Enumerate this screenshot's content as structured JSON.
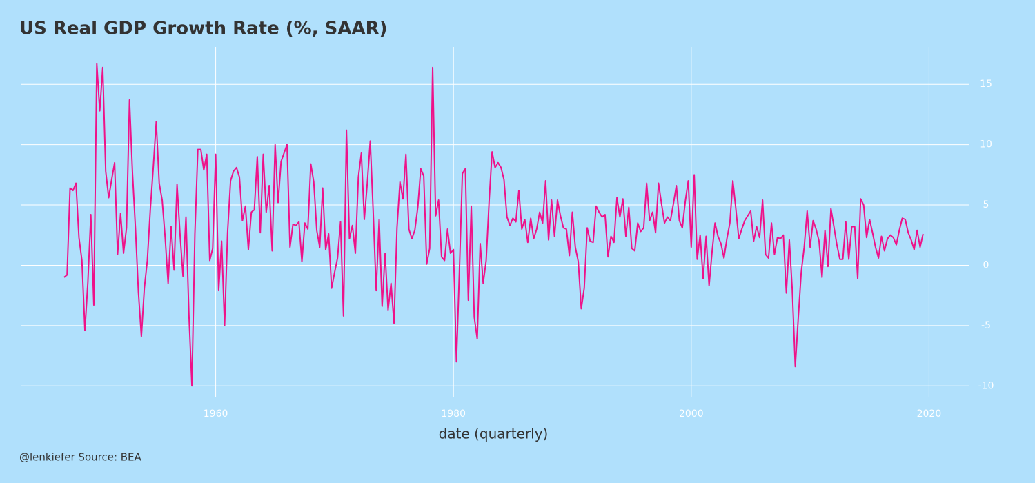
{
  "chart_data": {
    "type": "line",
    "title": "US Real GDP Growth Rate (%, SAAR)",
    "x_label": "date (quarterly)",
    "caption": "@lenkiefer Source: BEA",
    "x": [
      1947.25,
      1947.5,
      1947.75,
      1948,
      1948.25,
      1948.5,
      1948.75,
      1949,
      1949.25,
      1949.5,
      1949.75,
      1950,
      1950.25,
      1950.5,
      1950.75,
      1951,
      1951.25,
      1951.5,
      1951.75,
      1952,
      1952.25,
      1952.5,
      1952.75,
      1953,
      1953.25,
      1953.5,
      1953.75,
      1954,
      1954.25,
      1954.5,
      1954.75,
      1955,
      1955.25,
      1955.5,
      1955.75,
      1956,
      1956.25,
      1956.5,
      1956.75,
      1957,
      1957.25,
      1957.5,
      1957.75,
      1958,
      1958.25,
      1958.5,
      1958.75,
      1959,
      1959.25,
      1959.5,
      1959.75,
      1960,
      1960.25,
      1960.5,
      1960.75,
      1961,
      1961.25,
      1961.5,
      1961.75,
      1962,
      1962.25,
      1962.5,
      1962.75,
      1963,
      1963.25,
      1963.5,
      1963.75,
      1964,
      1964.25,
      1964.5,
      1964.75,
      1965,
      1965.25,
      1965.5,
      1965.75,
      1966,
      1966.25,
      1966.5,
      1966.75,
      1967,
      1967.25,
      1967.5,
      1967.75,
      1968,
      1968.25,
      1968.5,
      1968.75,
      1969,
      1969.25,
      1969.5,
      1969.75,
      1970,
      1970.25,
      1970.5,
      1970.75,
      1971,
      1971.25,
      1971.5,
      1971.75,
      1972,
      1972.25,
      1972.5,
      1972.75,
      1973,
      1973.25,
      1973.5,
      1973.75,
      1974,
      1974.25,
      1974.5,
      1974.75,
      1975,
      1975.25,
      1975.5,
      1975.75,
      1976,
      1976.25,
      1976.5,
      1976.75,
      1977,
      1977.25,
      1977.5,
      1977.75,
      1978,
      1978.25,
      1978.5,
      1978.75,
      1979,
      1979.25,
      1979.5,
      1979.75,
      1980,
      1980.25,
      1980.5,
      1980.75,
      1981,
      1981.25,
      1981.5,
      1981.75,
      1982,
      1982.25,
      1982.5,
      1982.75,
      1983,
      1983.25,
      1983.5,
      1983.75,
      1984,
      1984.25,
      1984.5,
      1984.75,
      1985,
      1985.25,
      1985.5,
      1985.75,
      1986,
      1986.25,
      1986.5,
      1986.75,
      1987,
      1987.25,
      1987.5,
      1987.75,
      1988,
      1988.25,
      1988.5,
      1988.75,
      1989,
      1989.25,
      1989.5,
      1989.75,
      1990,
      1990.25,
      1990.5,
      1990.75,
      1991,
      1991.25,
      1991.5,
      1991.75,
      1992,
      1992.25,
      1992.5,
      1992.75,
      1993,
      1993.25,
      1993.5,
      1993.75,
      1994,
      1994.25,
      1994.5,
      1994.75,
      1995,
      1995.25,
      1995.5,
      1995.75,
      1996,
      1996.25,
      1996.5,
      1996.75,
      1997,
      1997.25,
      1997.5,
      1997.75,
      1998,
      1998.25,
      1998.5,
      1998.75,
      1999,
      1999.25,
      1999.5,
      1999.75,
      2000,
      2000.25,
      2000.5,
      2000.75,
      2001,
      2001.25,
      2001.5,
      2001.75,
      2002,
      2002.25,
      2002.5,
      2002.75,
      2003,
      2003.25,
      2003.5,
      2003.75,
      2004,
      2004.25,
      2004.5,
      2004.75,
      2005,
      2005.25,
      2005.5,
      2005.75,
      2006,
      2006.25,
      2006.5,
      2006.75,
      2007,
      2007.25,
      2007.5,
      2007.75,
      2008,
      2008.25,
      2008.5,
      2008.75,
      2009,
      2009.25,
      2009.5,
      2009.75,
      2010,
      2010.25,
      2010.5,
      2010.75,
      2011,
      2011.25,
      2011.5,
      2011.75,
      2012,
      2012.25,
      2012.5,
      2012.75,
      2013,
      2013.25,
      2013.5,
      2013.75,
      2014,
      2014.25,
      2014.5,
      2014.75,
      2015,
      2015.25,
      2015.5,
      2015.75,
      2016,
      2016.25,
      2016.5,
      2016.75,
      2017,
      2017.25,
      2017.5,
      2017.75,
      2018,
      2018.25,
      2018.5,
      2018.75,
      2019,
      2019.25,
      2019.5
    ],
    "series": [
      {
        "color": "#ee1289",
        "values": [
          -1.0,
          -0.8,
          6.4,
          6.2,
          6.8,
          2.3,
          0.4,
          -5.4,
          -1.4,
          4.2,
          -3.3,
          16.7,
          12.8,
          16.4,
          7.8,
          5.6,
          7.1,
          8.5,
          0.9,
          4.3,
          1.0,
          3.1,
          13.7,
          7.7,
          3.1,
          -2.2,
          -5.9,
          -1.9,
          0.4,
          4.6,
          8.1,
          11.9,
          6.8,
          5.4,
          2.3,
          -1.5,
          3.2,
          -0.4,
          6.7,
          2.6,
          -0.9,
          4.0,
          -4.1,
          -10.0,
          2.6,
          9.6,
          9.6,
          7.9,
          9.2,
          0.4,
          1.4,
          9.2,
          -2.1,
          2.0,
          -5.0,
          2.7,
          7.0,
          7.8,
          8.1,
          7.3,
          3.7,
          4.9,
          1.3,
          4.4,
          4.6,
          9.0,
          2.7,
          9.2,
          4.4,
          6.6,
          1.2,
          10.0,
          5.2,
          8.6,
          9.3,
          10.0,
          1.5,
          3.4,
          3.3,
          3.6,
          0.3,
          3.5,
          3.0,
          8.4,
          6.9,
          2.9,
          1.5,
          6.4,
          1.3,
          2.6,
          -1.9,
          -0.6,
          0.6,
          3.6,
          -4.2,
          11.2,
          2.2,
          3.3,
          1.0,
          7.3,
          9.3,
          3.8,
          6.8,
          10.3,
          4.4,
          -2.1,
          3.8,
          -3.4,
          1.0,
          -3.7,
          -1.5,
          -4.8,
          3.1,
          6.9,
          5.5,
          9.2,
          3.0,
          2.2,
          2.9,
          4.8,
          8.0,
          7.4,
          0.1,
          1.4,
          16.4,
          4.1,
          5.4,
          0.7,
          0.4,
          3.0,
          1.0,
          1.3,
          -8.0,
          -0.5,
          7.6,
          8.0,
          -2.9,
          4.9,
          -4.3,
          -6.1,
          1.8,
          -1.5,
          0.4,
          5.3,
          9.4,
          8.1,
          8.5,
          8.1,
          7.1,
          4.0,
          3.3,
          3.9,
          3.6,
          6.2,
          3.0,
          3.8,
          1.9,
          3.9,
          2.2,
          3.0,
          4.4,
          3.5,
          7.0,
          2.1,
          5.4,
          2.4,
          5.4,
          4.1,
          3.1,
          3.0,
          0.8,
          4.4,
          1.5,
          0.3,
          -3.6,
          -1.9,
          3.1,
          2.0,
          1.9,
          4.9,
          4.4,
          4.0,
          4.2,
          0.7,
          2.4,
          1.9,
          5.6,
          4.0,
          5.5,
          2.4,
          4.8,
          1.4,
          1.2,
          3.5,
          2.8,
          3.1,
          6.8,
          3.7,
          4.4,
          2.7,
          6.8,
          5.1,
          3.5,
          4.0,
          3.7,
          5.1,
          6.6,
          3.7,
          3.1,
          5.3,
          7.0,
          1.5,
          7.5,
          0.5,
          2.5,
          -1.1,
          2.4,
          -1.7,
          1.1,
          3.5,
          2.4,
          1.8,
          0.6,
          2.2,
          3.5,
          7.0,
          4.7,
          2.2,
          3.0,
          3.7,
          4.1,
          4.5,
          2.0,
          3.2,
          2.3,
          5.4,
          0.9,
          0.6,
          3.5,
          0.9,
          2.3,
          2.2,
          2.5,
          -2.3,
          2.1,
          -2.1,
          -8.4,
          -4.4,
          -0.6,
          1.5,
          4.5,
          1.5,
          3.7,
          3.0,
          2.0,
          -1.0,
          2.9,
          -0.1,
          4.7,
          3.2,
          1.7,
          0.5,
          0.5,
          3.6,
          0.5,
          3.2,
          3.2,
          -1.1,
          5.5,
          5.0,
          2.3,
          3.8,
          2.7,
          1.5,
          0.6,
          2.4,
          1.2,
          2.2,
          2.5,
          2.3,
          1.7,
          2.9,
          3.9,
          3.8,
          2.7,
          2.1,
          1.3,
          2.9,
          1.5,
          2.6
        ]
      }
    ],
    "xlim": [
      1943.6,
      2023.4
    ],
    "xticks": [
      1960,
      1980,
      2000,
      2020
    ],
    "ylim": [
      -10.9,
      18.1
    ],
    "yticks": [
      -10,
      -5,
      0,
      5,
      10,
      15
    ],
    "grid": true,
    "y_axis_side": "right"
  }
}
